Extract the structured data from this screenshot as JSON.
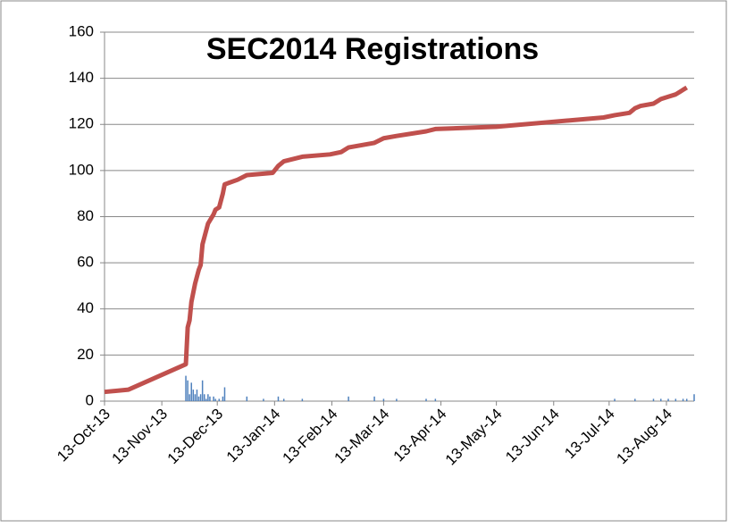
{
  "chart_data": {
    "type": "line",
    "title": "SEC2014 Registrations",
    "xlim": [
      "2013-10-13",
      "2014-08-28"
    ],
    "xticks": [
      {
        "value": "2013-10-13",
        "label": "13-Oct-13"
      },
      {
        "value": "2013-11-13",
        "label": "13-Nov-13"
      },
      {
        "value": "2013-12-13",
        "label": "13-Dec-13"
      },
      {
        "value": "2014-01-13",
        "label": "13-Jan-14"
      },
      {
        "value": "2014-02-13",
        "label": "13-Feb-14"
      },
      {
        "value": "2014-03-13",
        "label": "13-Mar-14"
      },
      {
        "value": "2014-04-13",
        "label": "13-Apr-14"
      },
      {
        "value": "2014-05-13",
        "label": "13-May-14"
      },
      {
        "value": "2014-06-13",
        "label": "13-Jun-14"
      },
      {
        "value": "2014-07-13",
        "label": "13-Jul-14"
      },
      {
        "value": "2014-08-13",
        "label": "13-Aug-14"
      }
    ],
    "ylim": [
      0,
      160
    ],
    "yticks": [
      0,
      20,
      40,
      60,
      80,
      100,
      120,
      140,
      160
    ],
    "grid": true,
    "series": [
      {
        "type": "line",
        "color": "#c0504d",
        "x": [
          "2013-10-13",
          "2013-10-26",
          "2013-11-26",
          "2013-11-27",
          "2013-11-28",
          "2013-11-29",
          "2013-12-01",
          "2013-12-03",
          "2013-12-04",
          "2013-12-05",
          "2013-12-06",
          "2013-12-08",
          "2013-12-11",
          "2013-12-12",
          "2013-12-14",
          "2013-12-16",
          "2013-12-17",
          "2013-12-24",
          "2013-12-29",
          "2014-01-12",
          "2014-01-15",
          "2014-01-18",
          "2014-01-28",
          "2014-02-12",
          "2014-02-18",
          "2014-02-22",
          "2014-03-08",
          "2014-03-13",
          "2014-03-20",
          "2014-04-05",
          "2014-04-10",
          "2014-05-13",
          "2014-07-10",
          "2014-07-16",
          "2014-07-24",
          "2014-07-27",
          "2014-07-30",
          "2014-08-06",
          "2014-08-10",
          "2014-08-14",
          "2014-08-18",
          "2014-08-22",
          "2014-08-24"
        ],
        "values": [
          4,
          5,
          16,
          32,
          35,
          43,
          51,
          57,
          59,
          68,
          71,
          77,
          81,
          83,
          84,
          90,
          94,
          96,
          98,
          99,
          102,
          104,
          106,
          107,
          108,
          110,
          112,
          114,
          115,
          117,
          118,
          119,
          123,
          124,
          125,
          127,
          128,
          129,
          131,
          132,
          133,
          135,
          136
        ]
      },
      {
        "type": "bar",
        "color": "#4f81bd",
        "x": [
          "2013-11-26",
          "2013-11-27",
          "2013-11-28",
          "2013-11-29",
          "2013-11-30",
          "2013-12-01",
          "2013-12-02",
          "2013-12-03",
          "2013-12-04",
          "2013-12-05",
          "2013-12-06",
          "2013-12-07",
          "2013-12-08",
          "2013-12-09",
          "2013-12-11",
          "2013-12-12",
          "2013-12-14",
          "2013-12-16",
          "2013-12-17",
          "2013-12-29",
          "2014-01-07",
          "2014-01-15",
          "2014-01-18",
          "2014-01-28",
          "2014-02-22",
          "2014-03-08",
          "2014-03-13",
          "2014-03-20",
          "2014-04-05",
          "2014-04-10",
          "2014-07-16",
          "2014-07-27",
          "2014-08-06",
          "2014-08-10",
          "2014-08-14",
          "2014-08-18",
          "2014-08-22",
          "2014-08-24",
          "2014-08-28"
        ],
        "values": [
          11,
          9,
          3,
          8,
          5,
          3,
          5,
          2,
          3,
          9,
          3,
          1,
          3,
          2,
          2,
          1,
          1,
          2,
          6,
          2,
          1,
          2,
          1,
          1,
          2,
          2,
          1,
          1,
          1,
          1,
          1,
          1,
          1,
          1,
          1,
          1,
          1,
          1,
          3
        ]
      }
    ]
  }
}
